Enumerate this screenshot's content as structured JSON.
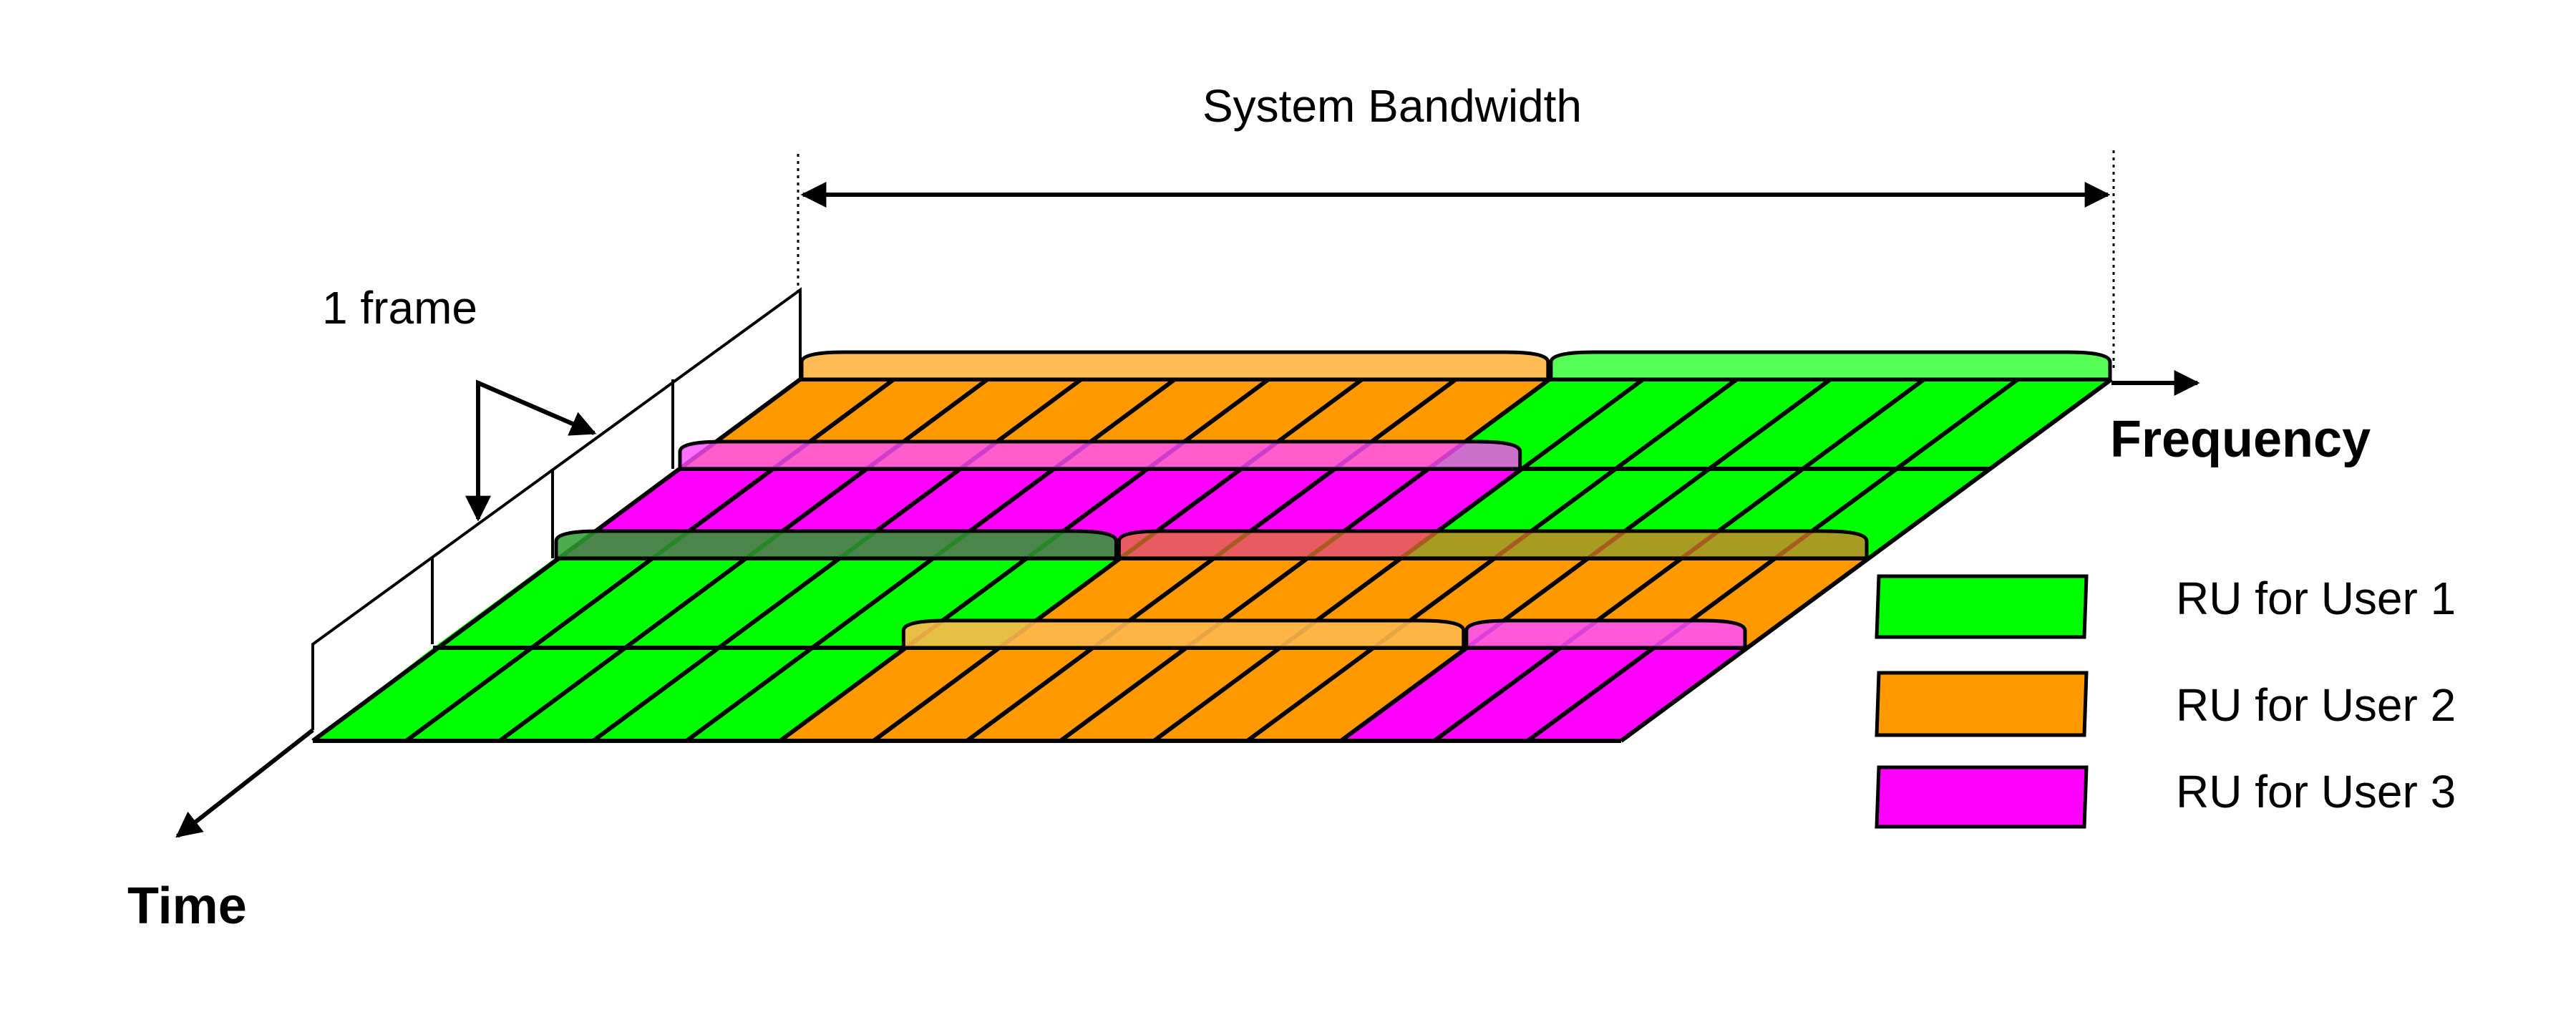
{
  "labels": {
    "system_bandwidth": "System Bandwidth",
    "frame": "1 frame",
    "frequency": "Frequency",
    "time": "Time"
  },
  "colors": {
    "user1": "#00ff00",
    "user2": "#ff9900",
    "user3": "#ff00ff",
    "user1_dome": "#4cff4c",
    "user2_dome": "#ffb84c",
    "user3_dome": "#ff4cff"
  },
  "legend": [
    {
      "label": "RU for User 1",
      "color": "#00ff00"
    },
    {
      "label": "RU for User 2",
      "color": "#ff9900"
    },
    {
      "label": "RU for User 3",
      "color": "#ff00ff"
    }
  ]
}
